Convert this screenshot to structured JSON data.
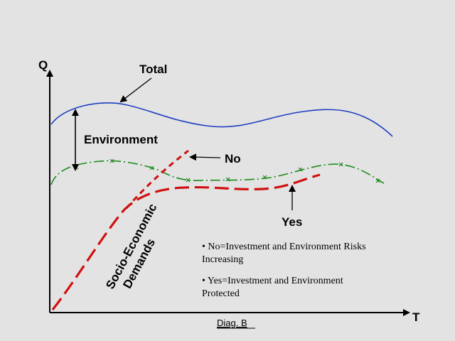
{
  "axes": {
    "y_label": "Q",
    "x_label": "T"
  },
  "labels": {
    "total": "Total",
    "environment": "Environment",
    "no": "No",
    "yes": "Yes",
    "socio_line1": "Socio-Economic",
    "socio_line2": "Demands",
    "caption": "Diag. B"
  },
  "legend": [
    {
      "line1": "• No=Investment and Environment Risks",
      "line2": "Increasing"
    },
    {
      "line1": "• Yes=Investment and Environment",
      "line2": "Protected"
    }
  ],
  "colors": {
    "total_curve": "#1f3fc0",
    "environment_curve": "#1a8a1a",
    "socio_curve": "#d01010",
    "axis": "#000000",
    "background": "#e3e3e3"
  }
}
